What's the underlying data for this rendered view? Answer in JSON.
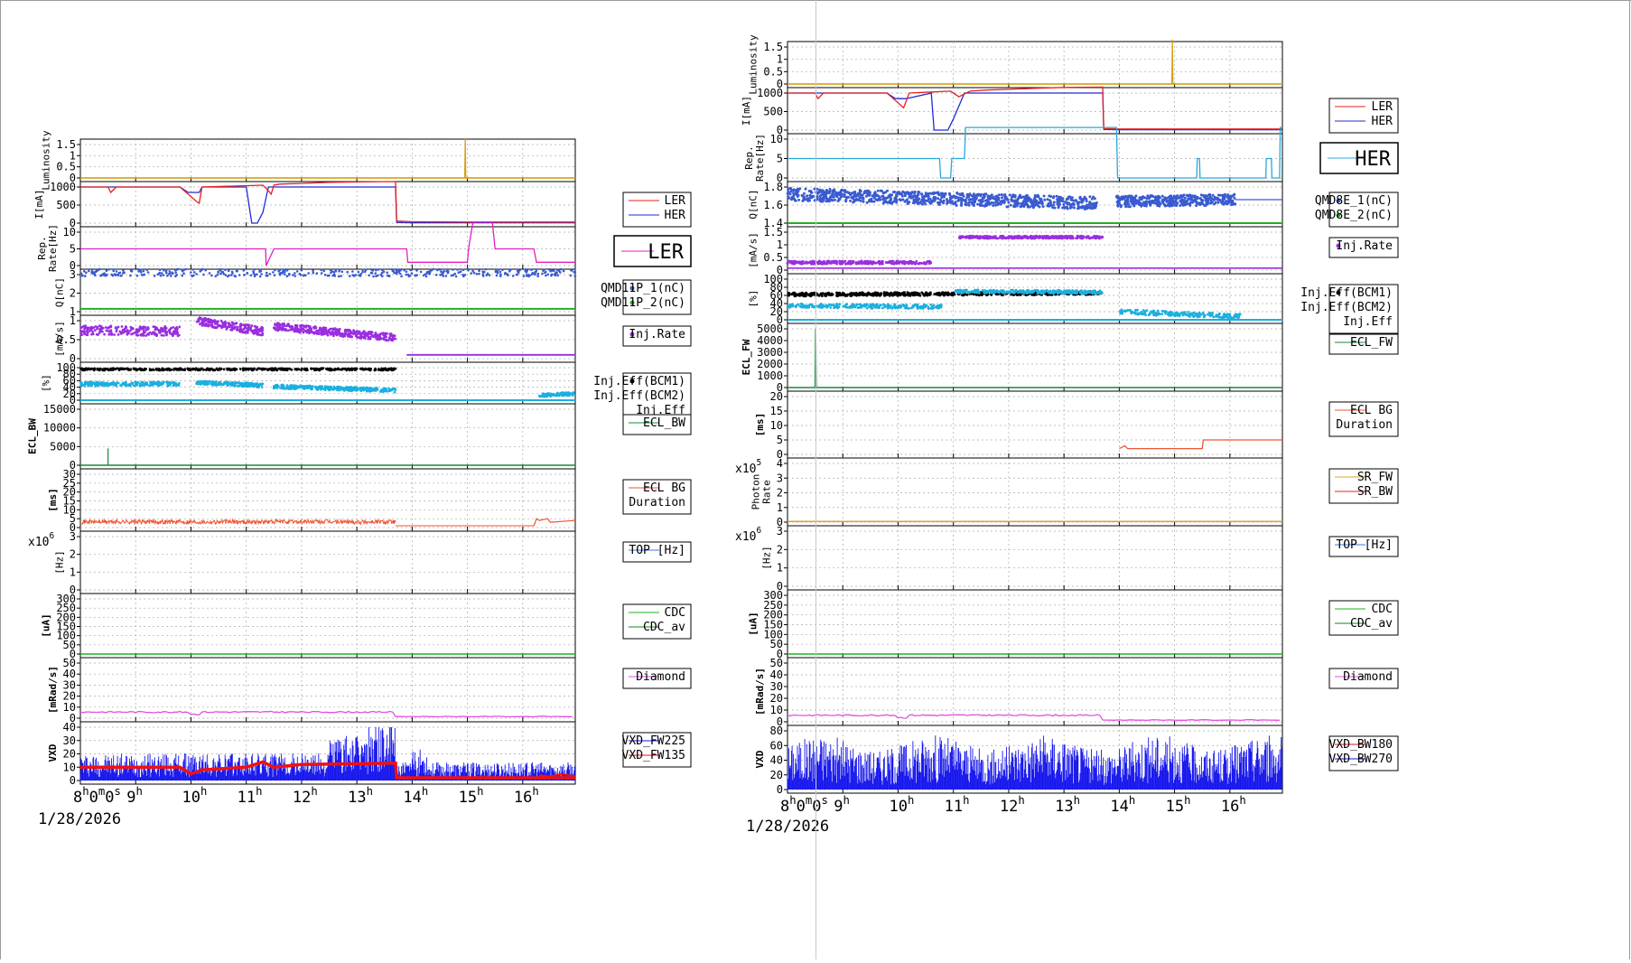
{
  "colors": {
    "luminosity": "#d4a017",
    "ler": "#e8201e",
    "her": "#1f2bd6",
    "rate_left": "#e020c0",
    "rate_right": "#2aa8d8",
    "qmd1": "#3a5bd0",
    "qmd2": "#20b020",
    "inj_rate": "#9a2ee0",
    "eff1": "#000000",
    "eff2": "#1ab0e0",
    "ecl_bw": "#1a8a3a",
    "ecl_dur": "#ee5533",
    "sr_fw": "#e8a020",
    "sr_bw": "#e82020",
    "top": "#3a7ae0",
    "cdc": "#20b020",
    "cdc_av": "#118811",
    "diamond": "#e050e0",
    "vxd_red": "#ee1111",
    "vxd_blue": "#1515ee"
  },
  "left": {
    "date": "1/28/2026",
    "time_ticks": [
      "8h0m0s",
      "9h",
      "10h",
      "11h",
      "12h",
      "13h",
      "14h",
      "15h",
      "16h"
    ],
    "panels": [
      {
        "key": "lumi",
        "ylabel": "Luminosity",
        "ticks": [
          "0",
          "0.5",
          "1",
          "1.5"
        ],
        "legend": [],
        "big_label": ""
      },
      {
        "key": "current",
        "ylabel": "I[mA]",
        "ticks": [
          "0",
          "500",
          "1000"
        ],
        "legend": [
          "LER",
          "HER"
        ],
        "big_label": ""
      },
      {
        "key": "rate",
        "ylabel": "Rep. Rate[Hz]",
        "ticks": [
          "0",
          "5",
          "10"
        ],
        "legend": [],
        "big_label": "LER"
      },
      {
        "key": "charge",
        "ylabel": "Q[nC]",
        "ticks": [
          "1",
          "2",
          "3"
        ],
        "legend": [
          "QMD11P_1(nC)",
          "QMD11P_2(nC)"
        ],
        "big_label": ""
      },
      {
        "key": "injrate",
        "ylabel": "[mA/s]",
        "ticks": [
          "0",
          "0.5",
          "1"
        ],
        "legend": [
          "Inj.Rate"
        ],
        "big_label": ""
      },
      {
        "key": "eff",
        "ylabel": "[%]",
        "ticks": [
          "0",
          "20",
          "40",
          "60",
          "80",
          "100"
        ],
        "legend": [
          "Inj.Eff(BCM1)",
          "Inj.Eff(BCM2)",
          "Inj.Eff"
        ],
        "big_label": ""
      },
      {
        "key": "eclbw",
        "ylabel": "ECL_BW",
        "ticks": [
          "0",
          "5000",
          "10000",
          "15000"
        ],
        "legend": [
          "ECL_BW"
        ],
        "big_label": ""
      },
      {
        "key": "ecldur",
        "ylabel": "[ms]",
        "ticks": [
          "0",
          "5",
          "10",
          "15",
          "20",
          "25",
          "30"
        ],
        "legend": [
          "ECL BG",
          "Duration"
        ],
        "big_label": ""
      },
      {
        "key": "top",
        "ylabel": "[Hz]",
        "ticks": [
          "0",
          "1",
          "2",
          "3"
        ],
        "legend": [
          "TOP [Hz]"
        ],
        "big_label": "",
        "exponent": "x10^6"
      },
      {
        "key": "cdc",
        "ylabel": "[uA]",
        "ticks": [
          "0",
          "50",
          "100",
          "150",
          "200",
          "250",
          "300"
        ],
        "legend": [
          "CDC",
          "CDC_av"
        ],
        "big_label": ""
      },
      {
        "key": "diamond",
        "ylabel": "[mRad/s]",
        "ticks": [
          "0",
          "10",
          "20",
          "30",
          "40",
          "50"
        ],
        "legend": [
          "Diamond"
        ],
        "big_label": ""
      },
      {
        "key": "vxd",
        "ylabel": "VXD",
        "ticks": [
          "0",
          "10",
          "20",
          "30",
          "40"
        ],
        "legend": [
          "VXD_FW225",
          "VXD_FW135"
        ],
        "big_label": ""
      }
    ]
  },
  "right": {
    "date": "1/28/2026",
    "time_ticks": [
      "8h0m0s",
      "9h",
      "10h",
      "11h",
      "12h",
      "13h",
      "14h",
      "15h",
      "16h"
    ],
    "panels": [
      {
        "key": "lumi",
        "ylabel": "Luminosity",
        "ticks": [
          "0",
          "0.5",
          "1",
          "1.5"
        ],
        "legend": [],
        "big_label": ""
      },
      {
        "key": "current",
        "ylabel": "I[mA]",
        "ticks": [
          "0",
          "500",
          "1000"
        ],
        "legend": [
          "LER",
          "HER"
        ],
        "big_label": ""
      },
      {
        "key": "rate",
        "ylabel": "Rep. Rate[Hz]",
        "ticks": [
          "0",
          "5",
          "10"
        ],
        "legend": [],
        "big_label": "HER"
      },
      {
        "key": "charge",
        "ylabel": "Q[nC]",
        "ticks": [
          "1.4",
          "1.6",
          "1.8"
        ],
        "legend": [
          "QMD8E_1(nC)",
          "QMD8E_2(nC)"
        ],
        "big_label": ""
      },
      {
        "key": "injrate",
        "ylabel": "[mA/s]",
        "ticks": [
          "0",
          "0.5",
          "1",
          "1.5"
        ],
        "legend": [
          "Inj.Rate"
        ],
        "big_label": ""
      },
      {
        "key": "eff",
        "ylabel": "[%]",
        "ticks": [
          "0",
          "20",
          "40",
          "60",
          "80",
          "100"
        ],
        "legend": [
          "Inj.Eff(BCM1)",
          "Inj.Eff(BCM2)",
          "Inj.Eff"
        ],
        "big_label": ""
      },
      {
        "key": "eclfw",
        "ylabel": "ECL_FW",
        "ticks": [
          "0",
          "1000",
          "2000",
          "3000",
          "4000",
          "5000"
        ],
        "legend": [
          "ECL_FW"
        ],
        "big_label": ""
      },
      {
        "key": "ecldur",
        "ylabel": "[ms]",
        "ticks": [
          "0",
          "5",
          "10",
          "15",
          "20"
        ],
        "legend": [
          "ECL BG",
          "Duration"
        ],
        "big_label": ""
      },
      {
        "key": "photon",
        "ylabel": "Photon Rate",
        "ticks": [
          "0",
          "1",
          "2",
          "3",
          "4"
        ],
        "legend": [
          "SR_FW",
          "SR_BW"
        ],
        "big_label": "",
        "exponent": "x10^5"
      },
      {
        "key": "top",
        "ylabel": "[Hz]",
        "ticks": [
          "0",
          "1",
          "2",
          "3"
        ],
        "legend": [
          "TOP [Hz]"
        ],
        "big_label": "",
        "exponent": "x10^6"
      },
      {
        "key": "cdc",
        "ylabel": "[uA]",
        "ticks": [
          "0",
          "50",
          "100",
          "150",
          "200",
          "250",
          "300"
        ],
        "legend": [
          "CDC",
          "CDC_av"
        ],
        "big_label": ""
      },
      {
        "key": "diamond",
        "ylabel": "[mRad/s]",
        "ticks": [
          "0",
          "10",
          "20",
          "30",
          "40",
          "50"
        ],
        "legend": [
          "Diamond"
        ],
        "big_label": ""
      },
      {
        "key": "vxd",
        "ylabel": "VXD",
        "ticks": [
          "0",
          "20",
          "40",
          "60",
          "80"
        ],
        "legend": [
          "VXD_BW180",
          "VXD_BW270"
        ],
        "big_label": ""
      }
    ]
  },
  "chart_data": [
    {
      "type": "line",
      "title": "",
      "x_unit": "hour of day, 1/28/2026",
      "xlim": [
        8,
        16.95
      ],
      "series": [
        {
          "name": "LER",
          "panel": "current",
          "x": [
            8,
            8.5,
            8.55,
            8.65,
            9.8,
            9.95,
            10.1,
            10.15,
            10.2,
            11.3,
            11.4,
            11.45,
            11.5,
            11.6,
            12,
            12.5,
            13,
            13.7,
            13.72,
            14,
            15,
            16,
            16.95
          ],
          "y": [
            1000,
            1000,
            850,
            1000,
            1000,
            800,
            600,
            550,
            1000,
            1050,
            900,
            800,
            1050,
            1080,
            1100,
            1130,
            1140,
            1150,
            60,
            40,
            30,
            30,
            30
          ]
        },
        {
          "name": "HER",
          "panel": "current",
          "x": [
            8,
            9.8,
            9.95,
            10.15,
            10.2,
            10.7,
            11,
            11.1,
            11.2,
            11.3,
            11.4,
            13.7,
            13.72,
            14,
            15,
            16,
            16.95
          ],
          "y": [
            1000,
            1000,
            850,
            850,
            1000,
            1000,
            1000,
            0,
            0,
            300,
            1000,
            1000,
            20,
            10,
            10,
            10,
            10
          ]
        },
        {
          "name": "LER Rep. Rate",
          "panel": "rate",
          "x": [
            8,
            11.35,
            11.36,
            11.5,
            11.55,
            13.9,
            13.92,
            15,
            15.02,
            15.1,
            15.45,
            15.5,
            16.2,
            16.25,
            16.95
          ],
          "y": [
            5,
            5,
            0,
            5,
            5,
            5,
            1,
            1,
            5,
            13,
            13,
            5,
            5,
            1,
            1
          ]
        },
        {
          "name": "Luminosity",
          "panel": "lumi",
          "x": [
            8,
            14.95,
            14.96,
            14.97,
            16.95
          ],
          "y": [
            0,
            0,
            1.8,
            0,
            0
          ]
        },
        {
          "name": "Inj.Rate",
          "panel": "injrate",
          "x": [
            8,
            9.8,
            10.1,
            10.5,
            11.3,
            11.5,
            12.5,
            13.7,
            13.9,
            16.95
          ],
          "y": [
            0.75,
            0.75,
            1.05,
            0.8,
            0.7,
            0.85,
            0.65,
            0.55,
            0.1,
            0.1
          ]
        },
        {
          "name": "Inj.Eff(BCM1)",
          "panel": "eff",
          "x": [
            8,
            9.8,
            10.1,
            11.3,
            11.5,
            13.7
          ],
          "y": [
            95,
            95,
            95,
            95,
            95,
            95
          ]
        },
        {
          "name": "Inj.Eff(BCM2)",
          "panel": "eff",
          "x": [
            8,
            9.8,
            10.1,
            11.3,
            11.5,
            13.7,
            16.3,
            16.95
          ],
          "y": [
            50,
            50,
            55,
            45,
            45,
            30,
            5,
            20
          ]
        },
        {
          "name": "VXD_FW135",
          "panel": "vxd",
          "x": [
            8,
            9.8,
            10,
            10.2,
            11,
            11.3,
            11.5,
            12,
            13.7,
            13.72,
            16.95
          ],
          "y": [
            10,
            10,
            5,
            8,
            10,
            14,
            10,
            12,
            13,
            2,
            2
          ]
        }
      ]
    },
    {
      "type": "line",
      "title": "",
      "x_unit": "hour of day, 1/28/2026",
      "xlim": [
        8,
        16.95
      ],
      "series": [
        {
          "name": "LER",
          "panel": "current",
          "x": [
            8,
            8.5,
            8.55,
            8.65,
            9.8,
            9.95,
            10.1,
            10.2,
            10.95,
            11.1,
            11.3,
            11.6,
            12,
            12.5,
            13,
            13.7,
            13.72,
            14,
            15,
            16,
            16.95
          ],
          "y": [
            1000,
            1000,
            850,
            1000,
            1000,
            800,
            600,
            1000,
            1050,
            900,
            1050,
            1080,
            1100,
            1130,
            1150,
            1160,
            40,
            30,
            30,
            30,
            30
          ]
        },
        {
          "name": "HER",
          "panel": "current",
          "x": [
            8,
            9.8,
            9.95,
            10.15,
            10.6,
            10.65,
            10.9,
            11,
            11.2,
            11.3,
            13.7,
            13.72,
            14,
            15,
            16,
            16.95
          ],
          "y": [
            1000,
            1000,
            850,
            850,
            1000,
            0,
            0,
            300,
            1000,
            1000,
            1000,
            20,
            10,
            10,
            10,
            10
          ]
        },
        {
          "name": "HER Rep. Rate",
          "panel": "rate",
          "x": [
            8,
            10.75,
            10.77,
            10.95,
            10.97,
            11.2,
            11.22,
            13.95,
            13.97,
            14.2,
            15.4,
            15.41,
            15.45,
            15.46,
            16.65,
            16.66,
            16.75,
            16.76,
            16.9,
            16.91,
            16.95
          ],
          "y": [
            5,
            5,
            0,
            0,
            5,
            5,
            13,
            13,
            0,
            0,
            0,
            5,
            5,
            0,
            0,
            5,
            5,
            0,
            0,
            13,
            13
          ]
        },
        {
          "name": "Luminosity",
          "panel": "lumi",
          "x": [
            8,
            14.95,
            14.96,
            14.97,
            16.95
          ],
          "y": [
            0,
            0,
            1.8,
            0,
            0
          ]
        },
        {
          "name": "QMD8E_1(nC)",
          "panel": "charge",
          "x": [
            8,
            9.8,
            10,
            10.8,
            11,
            13.7,
            13.9,
            16.95
          ],
          "y": [
            1.7,
            1.75,
            1.72,
            1.68,
            1.72,
            1.62,
            1.55,
            1.66
          ]
        },
        {
          "name": "QMD8E_2(nC)",
          "panel": "charge",
          "x": [
            8,
            16.95
          ],
          "y": [
            1.4,
            1.4
          ]
        },
        {
          "name": "Inj.Rate",
          "panel": "injrate",
          "x": [
            8,
            9.8,
            10,
            10.6,
            10.9,
            11.1,
            13.7,
            14,
            16.95
          ],
          "y": [
            0.3,
            0.3,
            0.3,
            0.2,
            1.5,
            1.3,
            1.3,
            0.1,
            0.1
          ]
        },
        {
          "name": "Inj.Eff(BCM1)",
          "panel": "eff",
          "x": [
            8,
            10.8,
            11,
            13.7,
            14.2,
            16.95
          ],
          "y": [
            65,
            60,
            65,
            68,
            10,
            15
          ]
        },
        {
          "name": "Inj.Eff(BCM2)",
          "panel": "eff",
          "x": [
            8,
            10.8,
            11,
            13.7,
            14,
            14.5,
            16.95
          ],
          "y": [
            35,
            30,
            70,
            70,
            40,
            10,
            10
          ]
        },
        {
          "name": "ECL_FW",
          "panel": "eclfw",
          "x": [
            8,
            8.5,
            8.51,
            8.52,
            16.95
          ],
          "y": [
            0,
            0,
            5000,
            0,
            0
          ]
        },
        {
          "name": "ECL BG Duration",
          "panel": "ecldur",
          "x": [
            14,
            14.1,
            14.15,
            14.2,
            15.5,
            15.52,
            16.95
          ],
          "y": [
            2,
            3,
            2,
            2,
            2,
            5,
            5
          ]
        },
        {
          "name": "VXD_BW270",
          "panel": "vxd",
          "x": [
            8,
            16.95
          ],
          "y": [
            40,
            40
          ]
        }
      ]
    }
  ]
}
